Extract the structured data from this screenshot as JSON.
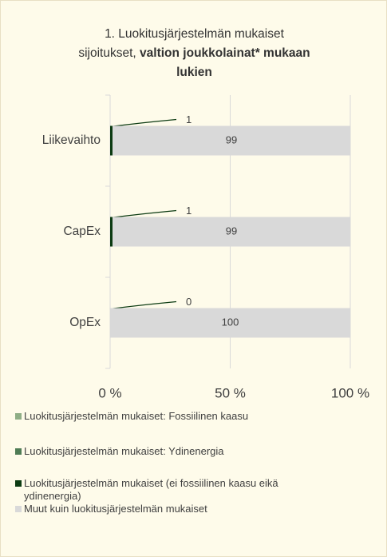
{
  "chart_data": {
    "type": "stacked_bar_horizontal",
    "title": "1. Luokitusjärjestelmän mukaiset sijoitukset,",
    "title_bold": "valtion joukkolainat* mukaan lukien",
    "categories": [
      "Liikevaihto",
      "CapEx",
      "OpEx"
    ],
    "series": [
      {
        "name": "Luokitusjärjestelmän mukaiset: Fossiilinen kaasu",
        "color": "#8fae86",
        "values": [
          0,
          0,
          0
        ]
      },
      {
        "name": "Luokitusjärjestelmän mukaiset: Ydinenergia",
        "color": "#4f7c55",
        "values": [
          0,
          0,
          0
        ]
      },
      {
        "name": "Luokitusjärjestelmän mukaiset (ei fossiilinen kaasu eikä ydinenergia)",
        "color": "#0c3b12",
        "values": [
          1,
          1,
          0
        ]
      },
      {
        "name": "Muut kuin luokitusjärjestelmän mukaiset",
        "color": "#d9d9d9",
        "values": [
          99,
          99,
          100
        ]
      }
    ],
    "xlim": [
      0,
      100
    ],
    "xticks": [
      {
        "value": 0,
        "label": "0 %"
      },
      {
        "value": 50,
        "label": "50 %"
      },
      {
        "value": 100,
        "label": "100 %"
      }
    ],
    "grid": true
  }
}
